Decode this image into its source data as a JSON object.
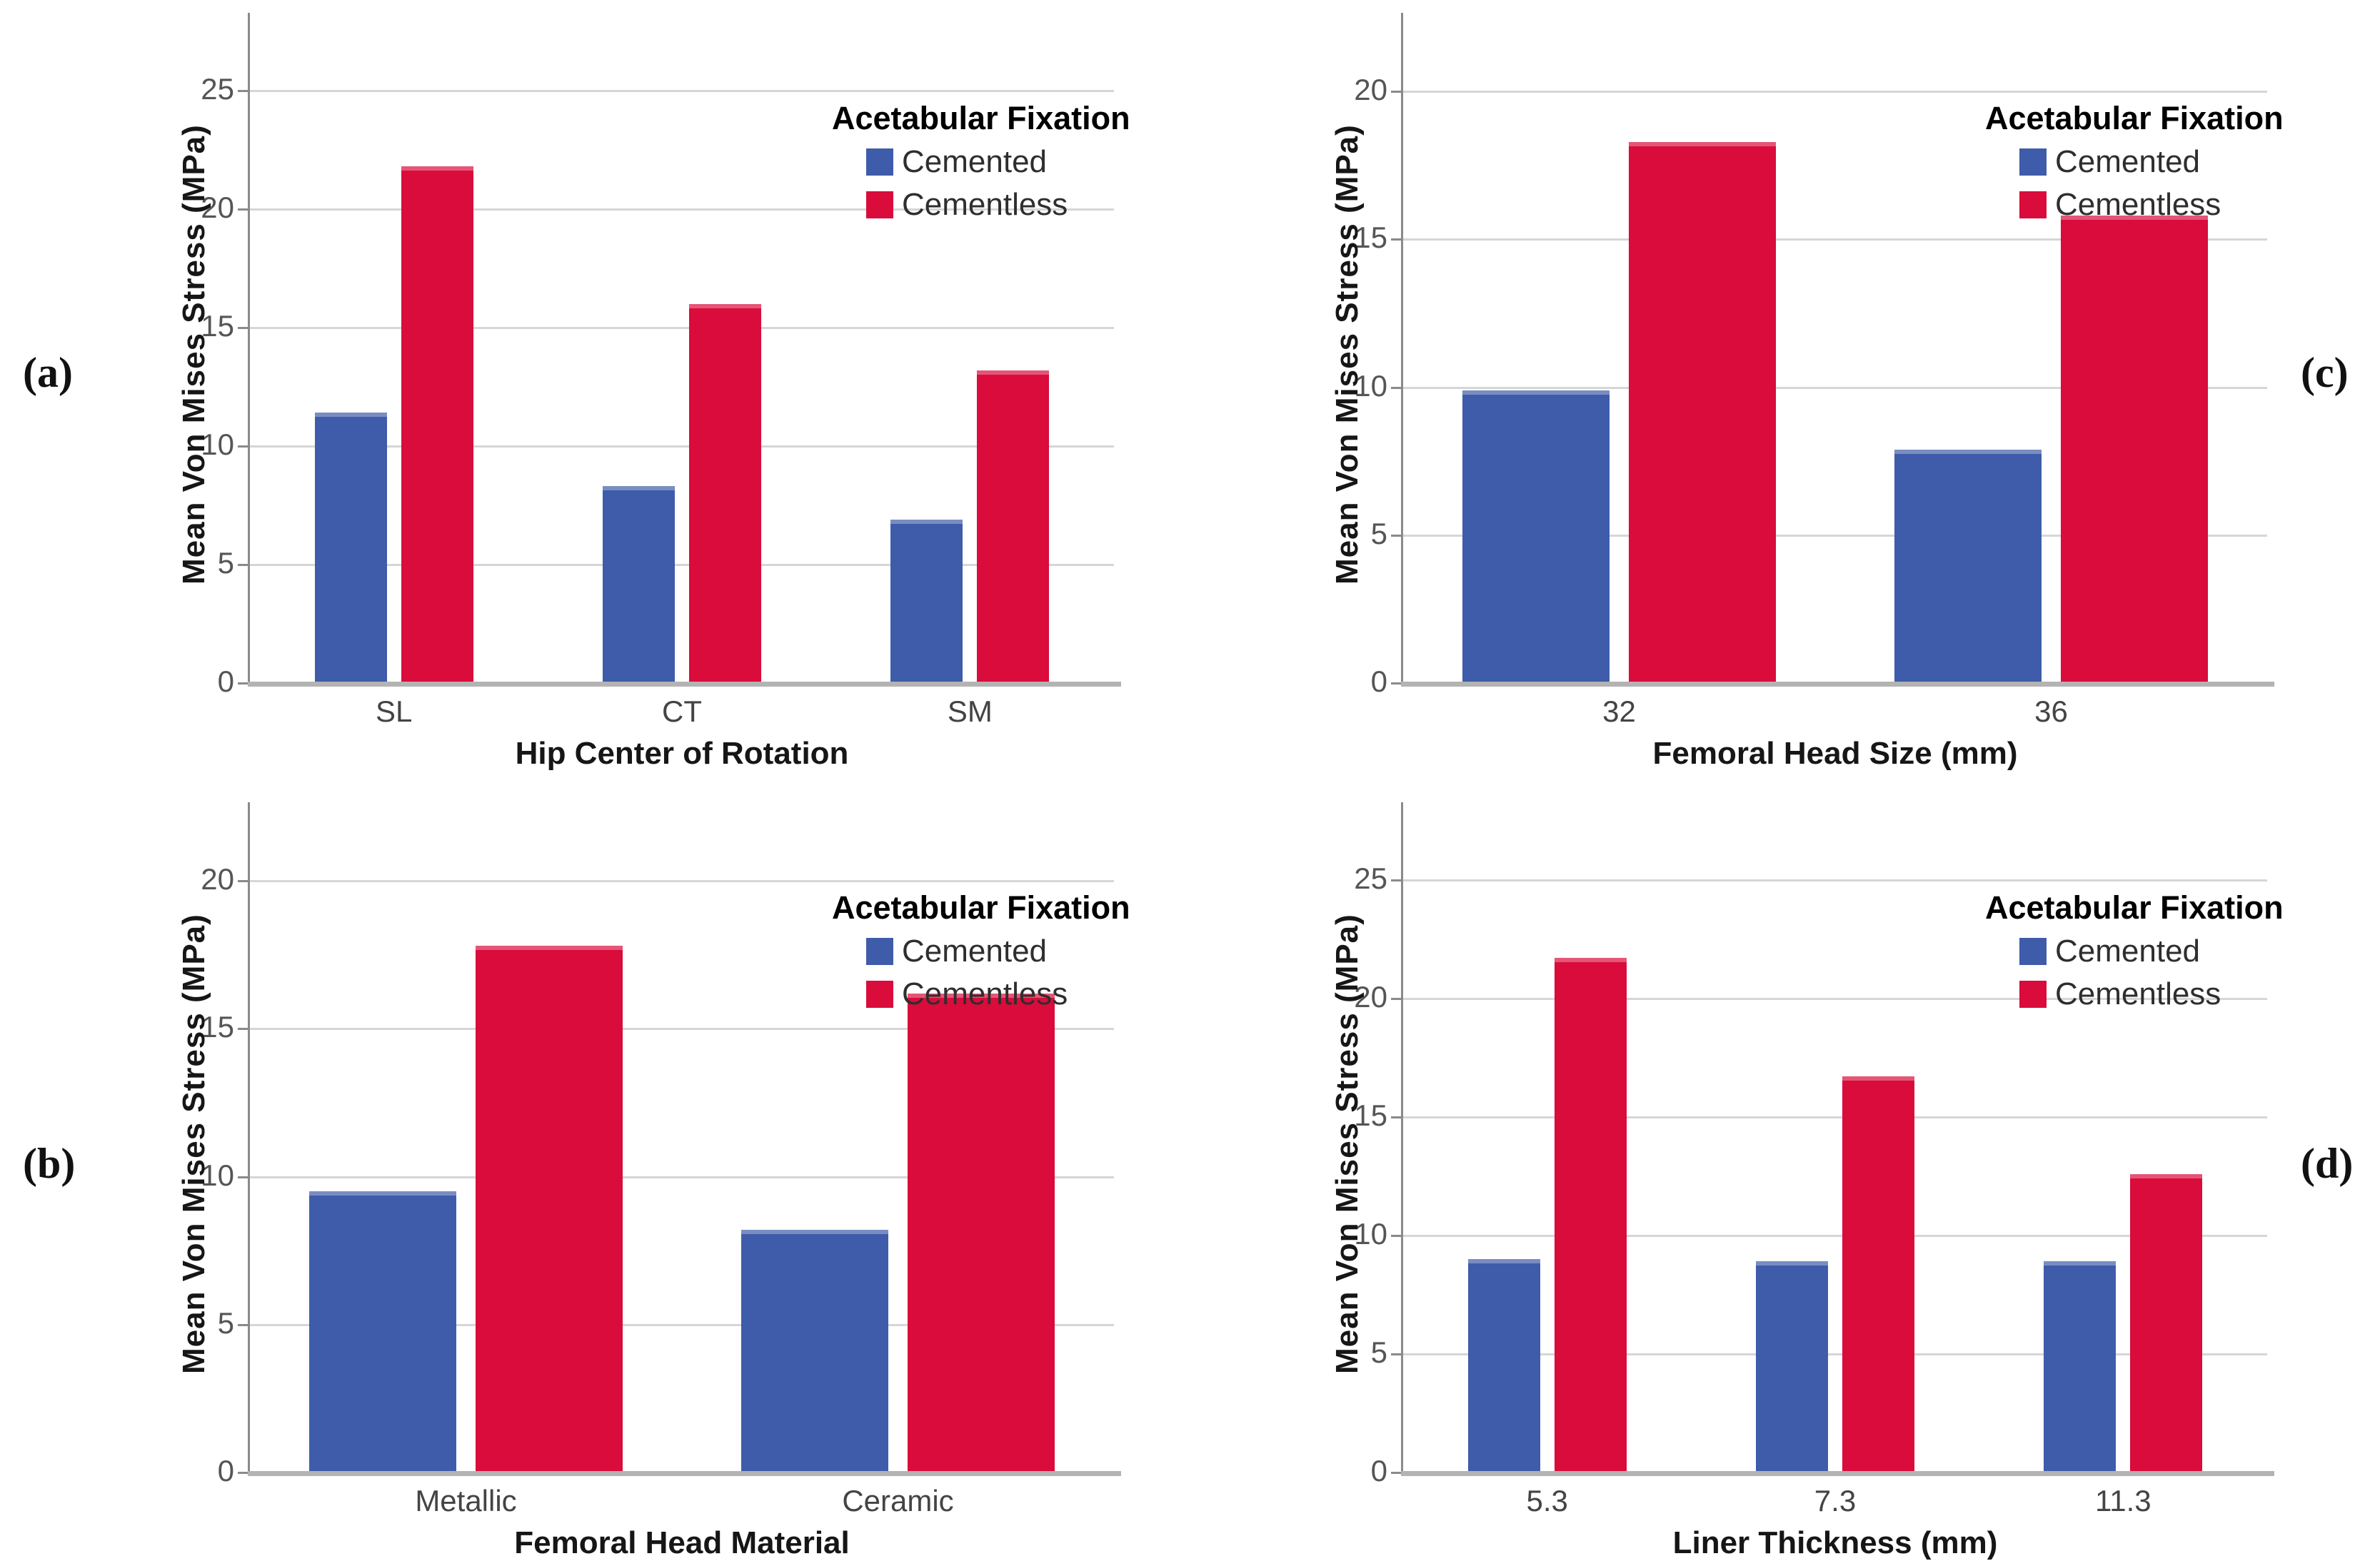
{
  "figure": {
    "description": "Four-panel grouped bar figure of mean von Mises stress by acetabular fixation type",
    "series_colors": {
      "cemented": "#3F5CAA",
      "cementless": "#D90C3C"
    }
  },
  "chart_data": [
    {
      "panel": "a",
      "panel_label": "(a)",
      "type": "bar",
      "title": "",
      "xlabel": "Hip Center of Rotation",
      "ylabel": "Mean Von Mises Stress (MPa)",
      "categories": [
        "SL",
        "CT",
        "SM"
      ],
      "series": [
        {
          "name": "Cemented",
          "color": "#3F5CAA",
          "values": [
            11.4,
            8.3,
            6.9
          ]
        },
        {
          "name": "Cementless",
          "color": "#D90C3C",
          "values": [
            21.8,
            16.0,
            13.2
          ]
        }
      ],
      "ylim": [
        0,
        25
      ],
      "yticks": [
        0,
        5,
        10,
        15,
        20,
        25
      ],
      "y_axis_top": 27.7,
      "grid": "horizontal",
      "legend_title": "Acetabular Fixation",
      "legend_position": "upper-right"
    },
    {
      "panel": "c",
      "panel_label": "(c)",
      "type": "bar",
      "title": "",
      "xlabel": "Femoral Head Size (mm)",
      "ylabel": "Mean Von Mises Stress (MPa)",
      "categories": [
        "32",
        "36"
      ],
      "series": [
        {
          "name": "Cemented",
          "color": "#3F5CAA",
          "values": [
            9.9,
            7.9
          ]
        },
        {
          "name": "Cementless",
          "color": "#D90C3C",
          "values": [
            18.3,
            15.8
          ]
        }
      ],
      "ylim": [
        0,
        20
      ],
      "yticks": [
        0,
        5,
        10,
        15,
        20
      ],
      "y_axis_top": 22.2,
      "grid": "horizontal",
      "legend_title": "Acetabular Fixation",
      "legend_position": "upper-right"
    },
    {
      "panel": "b",
      "panel_label": "(b)",
      "type": "bar",
      "title": "",
      "xlabel": "Femoral Head Material",
      "ylabel": "Mean Von Mises Stress (MPa)",
      "categories": [
        "Metallic",
        "Ceramic"
      ],
      "series": [
        {
          "name": "Cemented",
          "color": "#3F5CAA",
          "values": [
            9.5,
            8.2
          ]
        },
        {
          "name": "Cementless",
          "color": "#D90C3C",
          "values": [
            17.8,
            16.2
          ]
        }
      ],
      "ylim": [
        0,
        20
      ],
      "yticks": [
        0,
        5,
        10,
        15,
        20
      ],
      "y_axis_top": 22.2,
      "grid": "horizontal",
      "legend_title": "Acetabular Fixation",
      "legend_position": "upper-right"
    },
    {
      "panel": "d",
      "panel_label": "(d)",
      "type": "bar",
      "title": "",
      "xlabel": "Liner Thickness (mm)",
      "ylabel": "Mean Von Mises Stress (MPa)",
      "categories": [
        "5.3",
        "7.3",
        "11.3"
      ],
      "series": [
        {
          "name": "Cemented",
          "color": "#3F5CAA",
          "values": [
            9.0,
            8.9,
            8.9
          ]
        },
        {
          "name": "Cementless",
          "color": "#D90C3C",
          "values": [
            21.7,
            16.7,
            12.6
          ]
        }
      ],
      "ylim": [
        0,
        25
      ],
      "yticks": [
        0,
        5,
        10,
        15,
        20,
        25
      ],
      "y_axis_top": 27.7,
      "grid": "horizontal",
      "legend_title": "Acetabular Fixation",
      "legend_position": "upper-right"
    }
  ]
}
